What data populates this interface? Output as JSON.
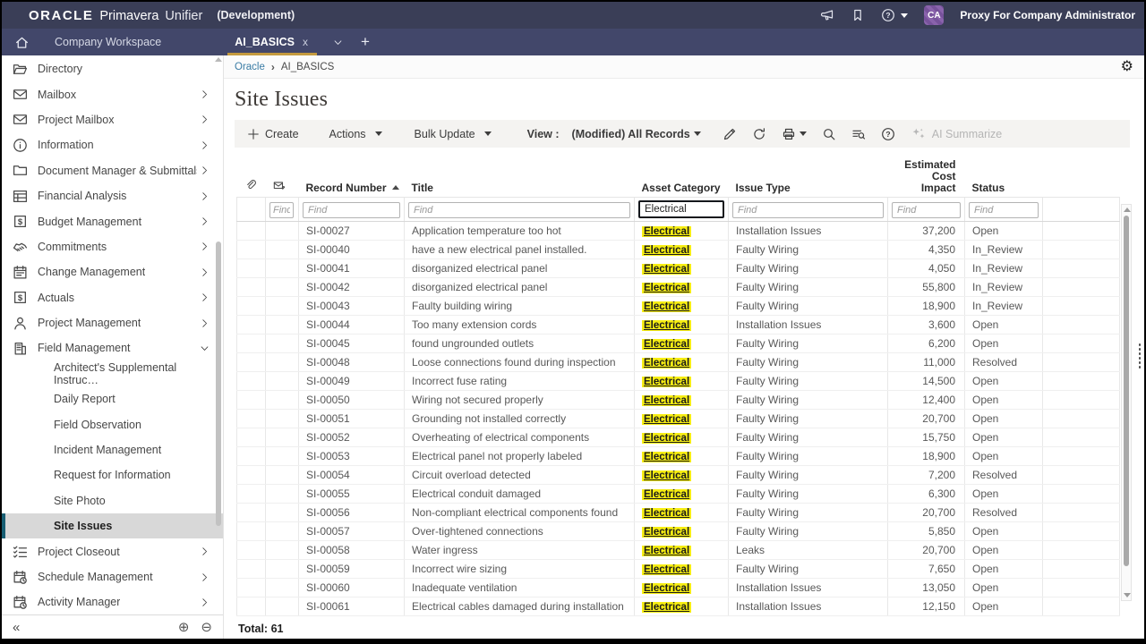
{
  "header": {
    "brand_oracle": "ORACLE",
    "brand_primavera": "Primavera",
    "brand_unifier": "Unifier",
    "environment": "(Development)",
    "icons": [
      "megaphone-icon",
      "bookmark-icon",
      "help-icon"
    ],
    "user_initials": "CA",
    "user_label": "Proxy For Company Administrator"
  },
  "tabbar": {
    "workspace_label": "Company Workspace",
    "active_tab": "AI_BASICS",
    "close_glyph": "x",
    "add_glyph": "+"
  },
  "breadcrumb": {
    "items": [
      "Oracle",
      "AI_BASICS"
    ]
  },
  "page": {
    "title": "Site Issues"
  },
  "toolbar": {
    "create_label": "Create",
    "actions_label": "Actions",
    "bulk_update_label": "Bulk Update",
    "view_label": "View :",
    "view_value": "(Modified) All Records",
    "icon_buttons": [
      {
        "icon": "edit-pencil-icon"
      },
      {
        "icon": "refresh-icon"
      },
      {
        "icon": "print-icon",
        "caret": true
      },
      {
        "icon": "search-icon"
      },
      {
        "icon": "find-in-list-icon"
      },
      {
        "icon": "help-circle-icon"
      }
    ],
    "ai_summarize_label": "AI Summarize"
  },
  "sidebar": {
    "collapse_glyph": "«",
    "zoom_in_glyph": "⊕",
    "zoom_out_glyph": "⊖",
    "items": [
      {
        "type": "item",
        "label": "Directory",
        "icon": "folder-open-icon"
      },
      {
        "type": "item",
        "label": "Mailbox",
        "icon": "envelope-icon",
        "chevron": "right"
      },
      {
        "type": "item",
        "label": "Project Mailbox",
        "icon": "envelope-icon",
        "chevron": "right"
      },
      {
        "type": "item",
        "label": "Information",
        "icon": "info-circle-icon",
        "chevron": "right"
      },
      {
        "type": "item",
        "label": "Document Manager & Submittals",
        "icon": "folder-icon",
        "chevron": "right"
      },
      {
        "type": "item",
        "label": "Financial Analysis",
        "icon": "spreadsheet-icon",
        "chevron": "right"
      },
      {
        "type": "item",
        "label": "Budget Management",
        "icon": "dollar-box-icon",
        "chevron": "right"
      },
      {
        "type": "item",
        "label": "Commitments",
        "icon": "handshake-icon",
        "chevron": "right"
      },
      {
        "type": "item",
        "label": "Change Management",
        "icon": "calendar-icon",
        "chevron": "right"
      },
      {
        "type": "item",
        "label": "Actuals",
        "icon": "dollar-box-icon",
        "chevron": "right"
      },
      {
        "type": "item",
        "label": "Project Management",
        "icon": "person-icon",
        "chevron": "right"
      },
      {
        "type": "item",
        "label": "Field Management",
        "icon": "building-icon",
        "chevron": "down"
      },
      {
        "type": "subitem",
        "label": "Architect's Supplemental Instruc…"
      },
      {
        "type": "subitem",
        "label": "Daily Report"
      },
      {
        "type": "subitem",
        "label": "Field Observation"
      },
      {
        "type": "subitem",
        "label": "Incident Management"
      },
      {
        "type": "subitem",
        "label": "Request for Information"
      },
      {
        "type": "subitem",
        "label": "Site Photo"
      },
      {
        "type": "subitem",
        "label": "Site Issues",
        "selected": true
      },
      {
        "type": "item",
        "label": "Project Closeout",
        "icon": "checklist-icon",
        "chevron": "right"
      },
      {
        "type": "item",
        "label": "Schedule Management",
        "icon": "calendar-clock-icon",
        "chevron": "right"
      },
      {
        "type": "item",
        "label": "Activity Manager",
        "icon": "calendar-clock-icon",
        "chevron": "right"
      }
    ]
  },
  "table": {
    "columns": {
      "record_number": "Record Number",
      "title": "Title",
      "asset_category": "Asset Category",
      "issue_type": "Issue Type",
      "estimated_cost_impact": "Estimated Cost Impact",
      "status": "Status"
    },
    "sort": {
      "column": "record_number",
      "direction": "asc"
    },
    "filters": {
      "placeholder": "Find",
      "asset_category_value": "Electrical"
    },
    "rows": [
      {
        "record_number": "SI-00027",
        "title": "Application temperature too hot",
        "asset_category": "Electrical",
        "issue_type": "Installation Issues",
        "estimated_cost_impact": "37,200",
        "status": "Open"
      },
      {
        "record_number": "SI-00040",
        "title": "have a new electrical panel installed.",
        "asset_category": "Electrical",
        "issue_type": "Faulty Wiring",
        "estimated_cost_impact": "4,350",
        "status": "In_Review"
      },
      {
        "record_number": "SI-00041",
        "title": "disorganized electrical panel",
        "asset_category": "Electrical",
        "issue_type": "Faulty Wiring",
        "estimated_cost_impact": "4,050",
        "status": "In_Review"
      },
      {
        "record_number": "SI-00042",
        "title": "disorganized electrical panel",
        "asset_category": "Electrical",
        "issue_type": "Faulty Wiring",
        "estimated_cost_impact": "55,800",
        "status": "In_Review"
      },
      {
        "record_number": "SI-00043",
        "title": "Faulty building wiring",
        "asset_category": "Electrical",
        "issue_type": "Faulty Wiring",
        "estimated_cost_impact": "18,900",
        "status": "In_Review"
      },
      {
        "record_number": "SI-00044",
        "title": "Too many extension cords",
        "asset_category": "Electrical",
        "issue_type": "Installation Issues",
        "estimated_cost_impact": "3,600",
        "status": "Open"
      },
      {
        "record_number": "SI-00045",
        "title": "found ungrounded outlets",
        "asset_category": "Electrical",
        "issue_type": "Faulty Wiring",
        "estimated_cost_impact": "6,200",
        "status": "Open"
      },
      {
        "record_number": "SI-00048",
        "title": "Loose connections found during inspection",
        "asset_category": "Electrical",
        "issue_type": "Faulty Wiring",
        "estimated_cost_impact": "11,000",
        "status": "Resolved"
      },
      {
        "record_number": "SI-00049",
        "title": "Incorrect fuse rating",
        "asset_category": "Electrical",
        "issue_type": "Faulty Wiring",
        "estimated_cost_impact": "14,500",
        "status": "Open"
      },
      {
        "record_number": "SI-00050",
        "title": "Wiring not secured properly",
        "asset_category": "Electrical",
        "issue_type": "Faulty Wiring",
        "estimated_cost_impact": "12,400",
        "status": "Open"
      },
      {
        "record_number": "SI-00051",
        "title": "Grounding not installed correctly",
        "asset_category": "Electrical",
        "issue_type": "Faulty Wiring",
        "estimated_cost_impact": "20,700",
        "status": "Open"
      },
      {
        "record_number": "SI-00052",
        "title": "Overheating of electrical components",
        "asset_category": "Electrical",
        "issue_type": "Faulty Wiring",
        "estimated_cost_impact": "15,750",
        "status": "Open"
      },
      {
        "record_number": "SI-00053",
        "title": "Electrical panel not properly labeled",
        "asset_category": "Electrical",
        "issue_type": "Faulty Wiring",
        "estimated_cost_impact": "18,900",
        "status": "Open"
      },
      {
        "record_number": "SI-00054",
        "title": "Circuit overload detected",
        "asset_category": "Electrical",
        "issue_type": "Faulty Wiring",
        "estimated_cost_impact": "7,200",
        "status": "Resolved"
      },
      {
        "record_number": "SI-00055",
        "title": "Electrical conduit damaged",
        "asset_category": "Electrical",
        "issue_type": "Faulty Wiring",
        "estimated_cost_impact": "6,300",
        "status": "Open"
      },
      {
        "record_number": "SI-00056",
        "title": "Non-compliant electrical components found",
        "asset_category": "Electrical",
        "issue_type": "Faulty Wiring",
        "estimated_cost_impact": "20,700",
        "status": "Resolved"
      },
      {
        "record_number": "SI-00057",
        "title": "Over-tightened connections",
        "asset_category": "Electrical",
        "issue_type": "Faulty Wiring",
        "estimated_cost_impact": "5,850",
        "status": "Open"
      },
      {
        "record_number": "SI-00058",
        "title": "Water ingress",
        "asset_category": "Electrical",
        "issue_type": "Leaks",
        "estimated_cost_impact": "20,700",
        "status": "Open"
      },
      {
        "record_number": "SI-00059",
        "title": "Incorrect wire sizing",
        "asset_category": "Electrical",
        "issue_type": "Faulty Wiring",
        "estimated_cost_impact": "7,650",
        "status": "Open"
      },
      {
        "record_number": "SI-00060",
        "title": "Inadequate ventilation",
        "asset_category": "Electrical",
        "issue_type": "Installation Issues",
        "estimated_cost_impact": "13,050",
        "status": "Open"
      },
      {
        "record_number": "SI-00061",
        "title": "Electrical cables damaged during installation",
        "asset_category": "Electrical",
        "issue_type": "Installation Issues",
        "estimated_cost_impact": "12,150",
        "status": "Open"
      }
    ]
  },
  "footer": {
    "total": "Total: 61"
  },
  "colors": {
    "topbar": "#3a3e57",
    "tabbar": "#42476a",
    "tab_underline": "#c49a3e",
    "highlight_yellow": "#f7ee13",
    "selected_accent": "#175e73"
  }
}
